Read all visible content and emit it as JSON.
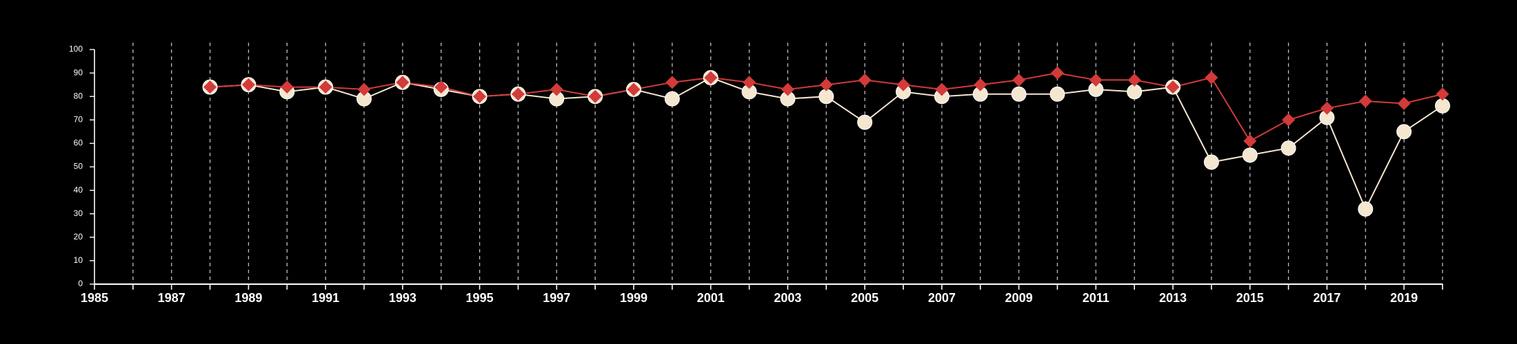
{
  "chart_data": {
    "type": "line",
    "title": "",
    "xlabel": "",
    "ylabel": "",
    "xlim": [
      1985,
      2020
    ],
    "ylim": [
      0,
      100
    ],
    "y_ticks": [
      0,
      10,
      20,
      30,
      40,
      50,
      60,
      70,
      80,
      90,
      100
    ],
    "x_ticks": [
      1985,
      1987,
      1989,
      1991,
      1993,
      1995,
      1997,
      1999,
      2001,
      2003,
      2005,
      2007,
      2009,
      2011,
      2013,
      2015,
      2017,
      2019
    ],
    "vertical_grid": "dashed at every year",
    "background_color": "#000000",
    "x": [
      1988,
      1989,
      1990,
      1991,
      1992,
      1993,
      1994,
      1995,
      1996,
      1997,
      1998,
      1999,
      2000,
      2001,
      2002,
      2003,
      2004,
      2005,
      2006,
      2007,
      2008,
      2009,
      2010,
      2011,
      2012,
      2013,
      2014,
      2015,
      2016,
      2017,
      2018,
      2019,
      2020
    ],
    "series": [
      {
        "color": "#f5e6d0",
        "marker": "circle",
        "values": [
          84,
          85,
          82,
          84,
          79,
          86,
          83,
          80,
          81,
          79,
          80,
          83,
          79,
          88,
          82,
          79,
          80,
          69,
          82,
          80,
          81,
          81,
          81,
          83,
          82,
          84,
          52,
          55,
          58,
          71,
          32,
          65,
          76
        ]
      },
      {
        "color": "#d33a3a",
        "marker": "diamond",
        "values": [
          84,
          85,
          84,
          84,
          83,
          86,
          84,
          80,
          81,
          83,
          80,
          83,
          86,
          88,
          86,
          83,
          85,
          87,
          85,
          83,
          85,
          87,
          90,
          87,
          87,
          84,
          88,
          61,
          70,
          75,
          78,
          77,
          81
        ]
      }
    ]
  }
}
